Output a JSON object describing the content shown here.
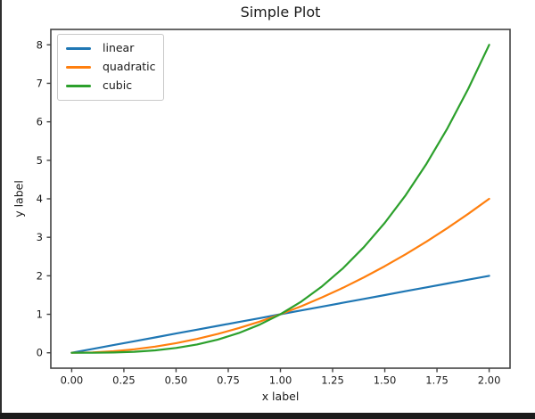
{
  "window": {
    "background": "#ffffff",
    "left_border_color": "#2e2e2e",
    "bottom_bar_color": "#1b1b1b"
  },
  "chart_data": {
    "type": "line",
    "title": "Simple Plot",
    "xlabel": "x label",
    "ylabel": "y label",
    "xlim": [
      -0.1,
      2.1
    ],
    "ylim": [
      -0.4,
      8.4
    ],
    "grid": false,
    "axis_color": "#424242",
    "text_color": "#1a1a1a",
    "x_ticks": [
      0,
      0.25,
      0.5,
      0.75,
      1,
      1.25,
      1.5,
      1.75,
      2
    ],
    "x_tick_labels": [
      "0.00",
      "0.25",
      "0.50",
      "0.75",
      "1.00",
      "1.25",
      "1.50",
      "1.75",
      "2.00"
    ],
    "y_ticks": [
      0,
      1,
      2,
      3,
      4,
      5,
      6,
      7,
      8
    ],
    "y_tick_labels": [
      "0",
      "1",
      "2",
      "3",
      "4",
      "5",
      "6",
      "7",
      "8"
    ],
    "legend": {
      "position": "upper left",
      "entries": [
        "linear",
        "quadratic",
        "cubic"
      ]
    },
    "x": [
      0,
      0.1,
      0.2,
      0.3,
      0.4,
      0.5,
      0.6,
      0.7,
      0.8,
      0.9,
      1.0,
      1.1,
      1.2,
      1.3,
      1.4,
      1.5,
      1.6,
      1.7,
      1.8,
      1.9,
      2.0
    ],
    "series": [
      {
        "name": "linear",
        "color": "#1f77b4",
        "values": [
          0,
          0.1,
          0.2,
          0.3,
          0.4,
          0.5,
          0.6,
          0.7,
          0.8,
          0.9,
          1.0,
          1.1,
          1.2,
          1.3,
          1.4,
          1.5,
          1.6,
          1.7,
          1.8,
          1.9,
          2.0
        ]
      },
      {
        "name": "quadratic",
        "color": "#ff7f0e",
        "values": [
          0,
          0.01,
          0.04,
          0.09,
          0.16,
          0.25,
          0.36,
          0.49,
          0.64,
          0.81,
          1.0,
          1.21,
          1.44,
          1.69,
          1.96,
          2.25,
          2.56,
          2.89,
          3.24,
          3.61,
          4.0
        ]
      },
      {
        "name": "cubic",
        "color": "#2ca02c",
        "values": [
          0,
          0.001,
          0.008,
          0.027,
          0.064,
          0.125,
          0.216,
          0.343,
          0.512,
          0.729,
          1.0,
          1.331,
          1.728,
          2.197,
          2.744,
          3.375,
          4.096,
          4.913,
          5.832,
          6.859,
          8.0
        ]
      }
    ]
  }
}
